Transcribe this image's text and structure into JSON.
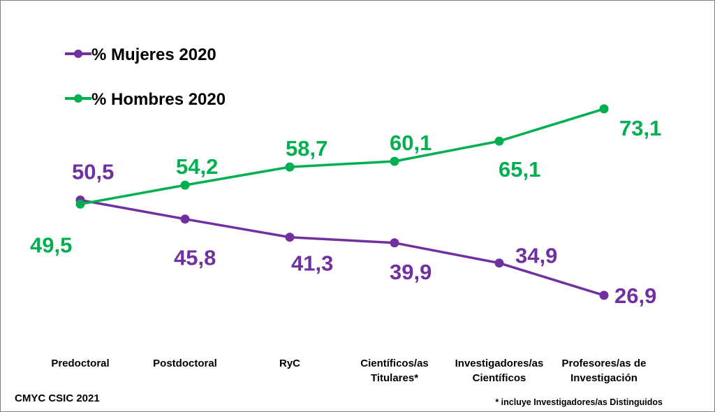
{
  "chart_data": {
    "type": "line",
    "categories": [
      [
        "Predoctoral"
      ],
      [
        "Postdoctoral"
      ],
      [
        "RyC"
      ],
      [
        "Científicos/as",
        "Titulares*"
      ],
      [
        "Investigadores/as",
        "Científicos"
      ],
      [
        "Profesores/as de",
        "Investigación"
      ]
    ],
    "series": [
      {
        "name": "% Mujeres 2020",
        "color": "#7030a0",
        "values": [
          50.5,
          45.8,
          41.3,
          39.9,
          34.9,
          26.9
        ],
        "labels": [
          "50,5",
          "45,8",
          "41,3",
          "39,9",
          "34,9",
          "26,9"
        ]
      },
      {
        "name": "% Hombres 2020",
        "color": "#00b050",
        "values": [
          49.5,
          54.2,
          58.7,
          60.1,
          65.1,
          73.1
        ],
        "labels": [
          "49,5",
          "54,2",
          "58,7",
          "60,1",
          "65,1",
          "73,1"
        ]
      }
    ],
    "ylim": [
      20,
      80
    ],
    "grid": false,
    "legend_position": "top-left"
  },
  "footer": {
    "credit": "CMYC CSIC 2021",
    "note": "* incluye Investigadores/as Distinguidos"
  }
}
